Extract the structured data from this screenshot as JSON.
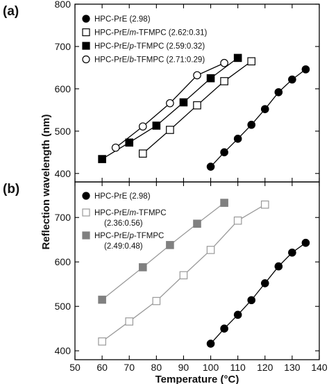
{
  "chart_data": [
    {
      "type": "line",
      "panel_label": "(a)",
      "ylim": [
        380,
        800
      ],
      "yticks": [
        400,
        500,
        600,
        700,
        800
      ],
      "legend_position": "top-left",
      "series": [
        {
          "legend": {
            "prefix": "HPC-PrE",
            "italic": "",
            "suffix": "",
            "ratio": "(2.98)"
          },
          "marker": "circle",
          "fill": "#000000",
          "stroke": "#000000",
          "line": "#000000",
          "x": [
            100,
            105,
            110,
            115,
            120,
            125,
            130,
            135
          ],
          "y": [
            416,
            450,
            482,
            515,
            552,
            592,
            622,
            646
          ]
        },
        {
          "legend": {
            "prefix": "HPC-PrE/",
            "italic": "m",
            "suffix": "-TFMPC",
            "ratio": "(2.62:0.31)"
          },
          "marker": "square",
          "fill": "#ffffff",
          "stroke": "#000000",
          "line": "#000000",
          "x": [
            75,
            85,
            95,
            105,
            115
          ],
          "y": [
            447,
            503,
            561,
            618,
            665
          ]
        },
        {
          "legend": {
            "prefix": "HPC-PrE/",
            "italic": "p",
            "suffix": "-TFMPC",
            "ratio": "(2.59:0.32)"
          },
          "marker": "square",
          "fill": "#000000",
          "stroke": "#000000",
          "line": "#000000",
          "x": [
            60,
            70,
            80,
            90,
            100,
            110
          ],
          "y": [
            434,
            473,
            513,
            568,
            625,
            673
          ]
        },
        {
          "legend": {
            "prefix": "HPC-PrE/",
            "italic": "b",
            "suffix": "-TFMPC",
            "ratio": "(2.71:0.29)"
          },
          "marker": "circle",
          "fill": "#ffffff",
          "stroke": "#000000",
          "line": "#000000",
          "x": [
            65,
            75,
            85,
            95,
            105
          ],
          "y": [
            461,
            511,
            566,
            632,
            661
          ]
        }
      ]
    },
    {
      "type": "line",
      "panel_label": "(b)",
      "ylim": [
        380,
        780
      ],
      "yticks": [
        400,
        500,
        600,
        700
      ],
      "legend_position": "top-left",
      "series": [
        {
          "legend": {
            "prefix": "HPC-PrE",
            "italic": "",
            "suffix": "",
            "ratio": "(2.98)"
          },
          "marker": "circle",
          "fill": "#000000",
          "stroke": "#000000",
          "line": "#000000",
          "x": [
            100,
            105,
            110,
            115,
            120,
            125,
            130,
            135
          ],
          "y": [
            416,
            450,
            481,
            514,
            552,
            590,
            621,
            643
          ]
        },
        {
          "legend": {
            "prefix": "HPC-PrE/",
            "italic": "m",
            "suffix": "-TFMPC",
            "ratio": "(2.36:0.56)"
          },
          "marker": "square",
          "fill": "#ffffff",
          "stroke": "#999999",
          "line": "#999999",
          "x": [
            60,
            70,
            80,
            90,
            100,
            110,
            120
          ],
          "y": [
            421,
            466,
            512,
            570,
            627,
            693,
            729
          ]
        },
        {
          "legend": {
            "prefix": "HPC-PrE/",
            "italic": "p",
            "suffix": "-TFMPC",
            "ratio": "(2.49:0.48)"
          },
          "marker": "square",
          "fill": "#808080",
          "stroke": "#808080",
          "line": "#999999",
          "x": [
            60,
            75,
            85,
            95,
            105
          ],
          "y": [
            515,
            588,
            638,
            686,
            733
          ]
        }
      ]
    }
  ],
  "x_axis": {
    "xlim": [
      50,
      140
    ],
    "xticks": [
      50,
      60,
      70,
      80,
      90,
      100,
      110,
      120,
      130,
      140
    ],
    "xlabel": "Temperature (°C)"
  },
  "ylabel": "Reflection wavelength (nm)"
}
